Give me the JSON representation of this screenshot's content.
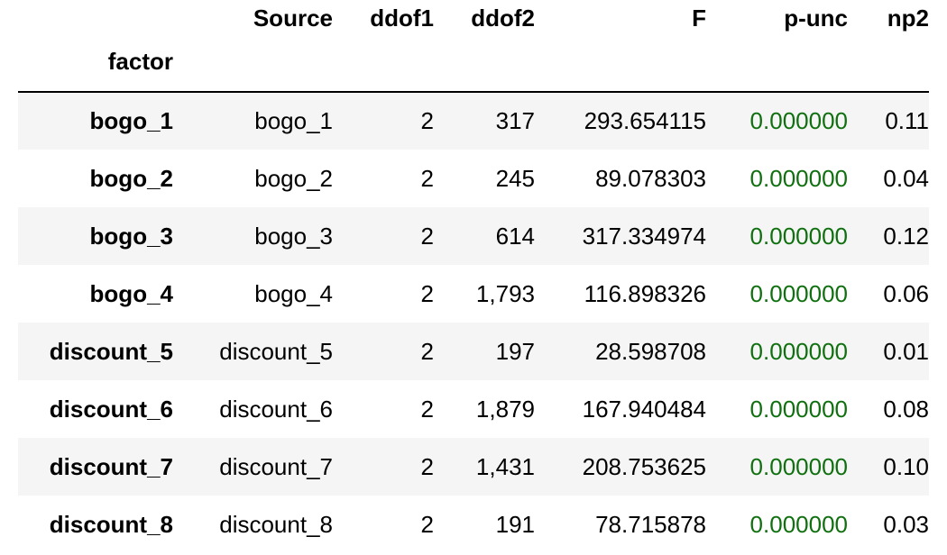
{
  "table": {
    "columns": [
      "Source",
      "ddof1",
      "ddof2",
      "F",
      "p-unc",
      "np2"
    ],
    "index_name": "factor",
    "rows": [
      {
        "index": "bogo_1",
        "Source": "bogo_1",
        "ddof1": "2",
        "ddof2": "317",
        "F": "293.654115",
        "p_unc": "0.000000",
        "np2": "0.11"
      },
      {
        "index": "bogo_2",
        "Source": "bogo_2",
        "ddof1": "2",
        "ddof2": "245",
        "F": "89.078303",
        "p_unc": "0.000000",
        "np2": "0.04"
      },
      {
        "index": "bogo_3",
        "Source": "bogo_3",
        "ddof1": "2",
        "ddof2": "614",
        "F": "317.334974",
        "p_unc": "0.000000",
        "np2": "0.12"
      },
      {
        "index": "bogo_4",
        "Source": "bogo_4",
        "ddof1": "2",
        "ddof2": "1,793",
        "F": "116.898326",
        "p_unc": "0.000000",
        "np2": "0.06"
      },
      {
        "index": "discount_5",
        "Source": "discount_5",
        "ddof1": "2",
        "ddof2": "197",
        "F": "28.598708",
        "p_unc": "0.000000",
        "np2": "0.01"
      },
      {
        "index": "discount_6",
        "Source": "discount_6",
        "ddof1": "2",
        "ddof2": "1,879",
        "F": "167.940484",
        "p_unc": "0.000000",
        "np2": "0.08"
      },
      {
        "index": "discount_7",
        "Source": "discount_7",
        "ddof1": "2",
        "ddof2": "1,431",
        "F": "208.753625",
        "p_unc": "0.000000",
        "np2": "0.10"
      },
      {
        "index": "discount_8",
        "Source": "discount_8",
        "ddof1": "2",
        "ddof2": "191",
        "F": "78.715878",
        "p_unc": "0.000000",
        "np2": "0.03"
      }
    ]
  },
  "colors": {
    "text": "#000000",
    "p_value_highlight": "#107010",
    "stripe_row": "#f5f5f5",
    "background": "#ffffff"
  }
}
